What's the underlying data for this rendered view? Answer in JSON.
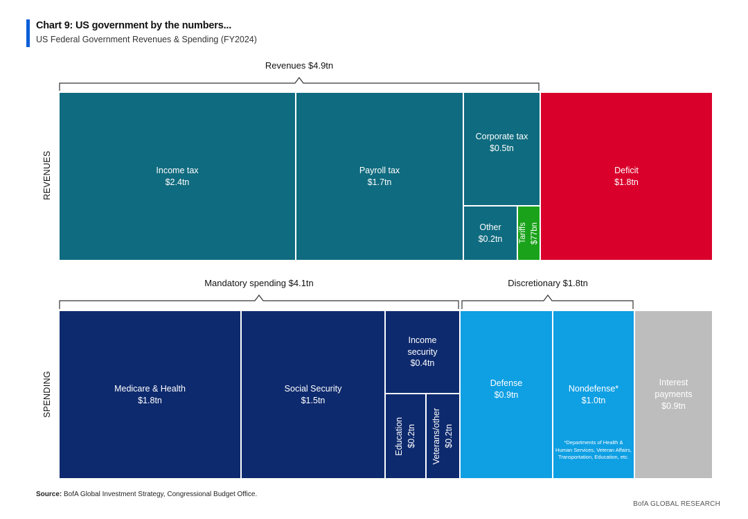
{
  "header": {
    "title": "Chart 9: US government by the numbers...",
    "subtitle": "US Federal Government Revenues & Spending (FY2024)"
  },
  "chart_data": {
    "type": "treemap",
    "unit": "US$ trillions",
    "rows": [
      {
        "label": "REVENUES",
        "groups": [
          {
            "label": "Revenues $4.9tn",
            "total": 4.9
          }
        ],
        "cells": [
          {
            "name": "Income tax",
            "value_label": "$2.4tn",
            "value": 2.4,
            "color": "#0f6b7f"
          },
          {
            "name": "Payroll tax",
            "value_label": "$1.7tn",
            "value": 1.7,
            "color": "#0f6b7f"
          },
          {
            "name": "Corporate tax",
            "value_label": "$0.5tn",
            "value": 0.5,
            "color": "#0f6b7f"
          },
          {
            "name": "Other",
            "value_label": "$0.2tn",
            "value": 0.2,
            "color": "#0f6b7f"
          },
          {
            "name": "Tariffs",
            "value_label": "$77bn",
            "value": 0.077,
            "color": "#1aa31a"
          },
          {
            "name": "Deficit",
            "value_label": "$1.8tn",
            "value": 1.8,
            "color": "#d9002b"
          }
        ]
      },
      {
        "label": "SPENDING",
        "groups": [
          {
            "label": "Mandatory spending $4.1tn",
            "total": 4.1
          },
          {
            "label": "Discretionary $1.8tn",
            "total": 1.8
          }
        ],
        "cells": [
          {
            "name": "Medicare & Health",
            "value_label": "$1.8tn",
            "value": 1.8,
            "color": "#0e2a6e"
          },
          {
            "name": "Social Security",
            "value_label": "$1.5tn",
            "value": 1.5,
            "color": "#0e2a6e"
          },
          {
            "name": "Income security",
            "value_label": "$0.4tn",
            "value": 0.4,
            "color": "#0e2a6e"
          },
          {
            "name": "Education",
            "value_label": "$0.2tn",
            "value": 0.2,
            "color": "#0e2a6e"
          },
          {
            "name": "Veterans/other",
            "value_label": "$0.2tn",
            "value": 0.2,
            "color": "#0e2a6e"
          },
          {
            "name": "Defense",
            "value_label": "$0.9tn",
            "value": 0.9,
            "color": "#0f9fe3"
          },
          {
            "name": "Nondefense*",
            "value_label": "$1.0tn",
            "value": 1.0,
            "color": "#0f9fe3"
          },
          {
            "name": "Interest payments",
            "value_label": "$0.9tn",
            "value": 0.9,
            "color": "#bdbdbd"
          }
        ],
        "footnote": "*Departments of Health & Human Services, Veteran Affairs, Transportation, Education, etc."
      }
    ]
  },
  "footer": {
    "source_label": "Source:",
    "source_text": " BofA Global Investment Strategy, Congressional Budget Office.",
    "brand": "BofA GLOBAL RESEARCH"
  }
}
